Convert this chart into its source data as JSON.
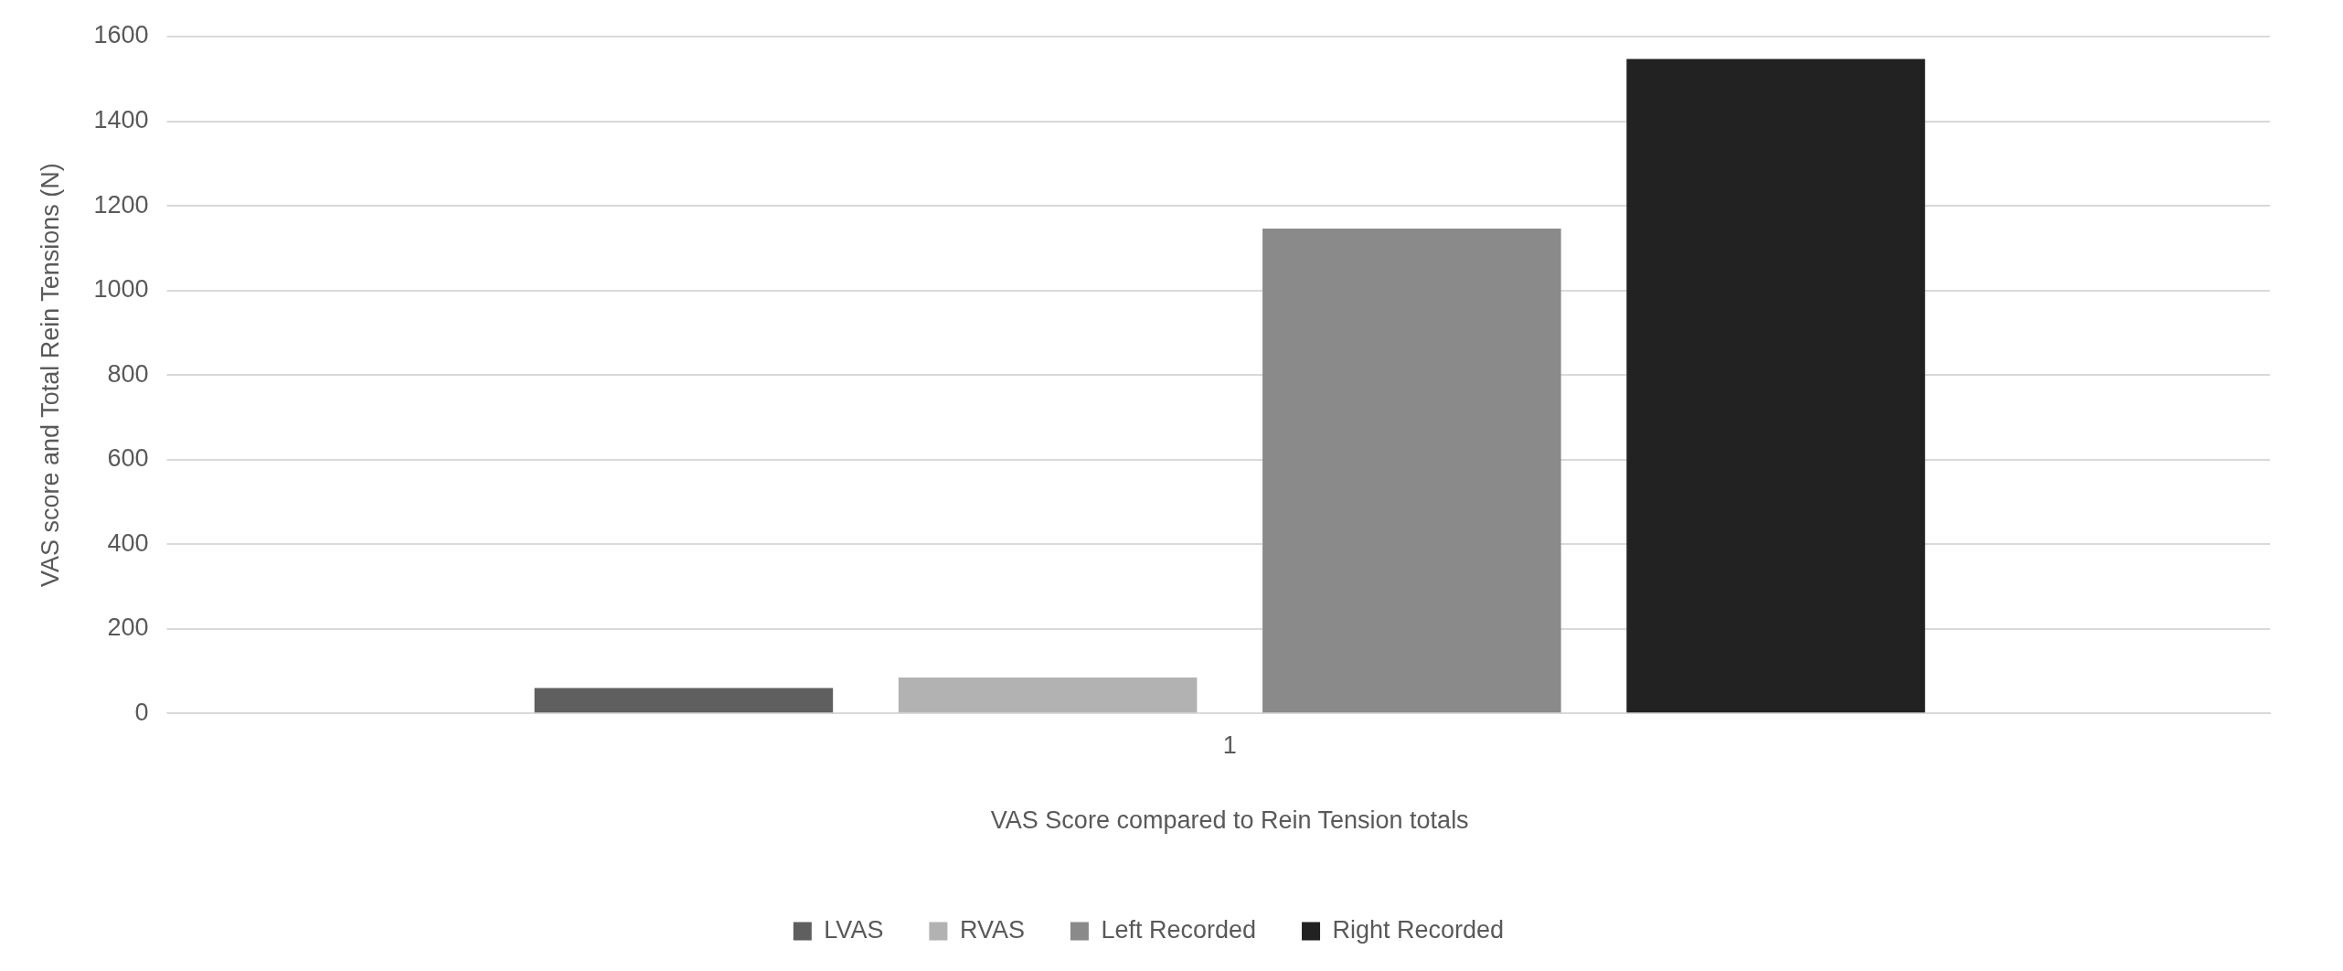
{
  "chart_data": {
    "type": "bar",
    "xlabel": "VAS Score compared to Rein Tension totals",
    "ylabel": "VAS score and Total Rein Tensions (N)",
    "categories": [
      "1"
    ],
    "series": [
      {
        "name": "LVAS",
        "color": "#5f5f5f",
        "values": [
          60
        ]
      },
      {
        "name": "RVAS",
        "color": "#b2b2b2",
        "values": [
          85
        ]
      },
      {
        "name": "Left Recorded",
        "color": "#8a8a8a",
        "values": [
          1146
        ]
      },
      {
        "name": "Right Recorded",
        "color": "#222222",
        "values": [
          1547
        ]
      }
    ],
    "ylim": [
      0,
      1600
    ],
    "yticks": [
      0,
      200,
      400,
      600,
      800,
      1000,
      1200,
      1400,
      1600
    ],
    "grid": "y",
    "legend": "bottom"
  }
}
